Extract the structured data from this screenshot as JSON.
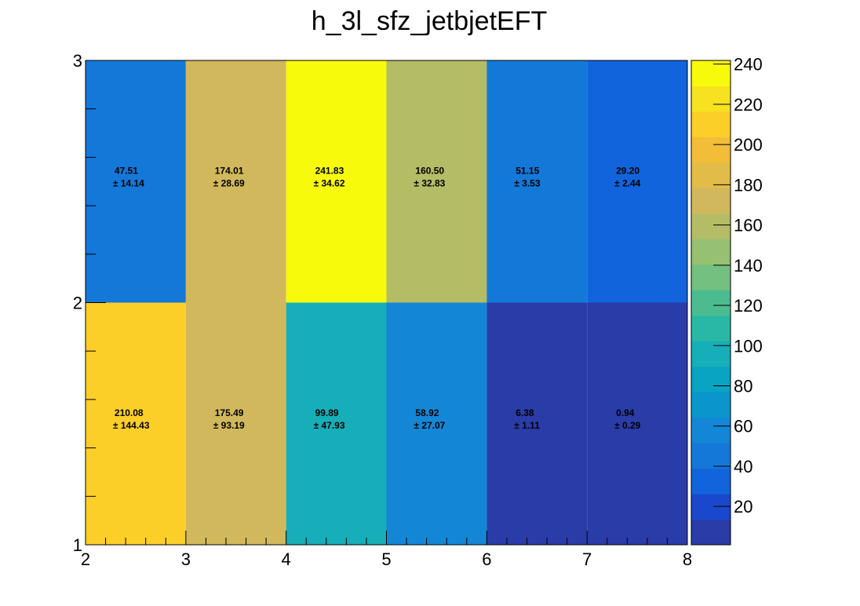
{
  "chart_data": {
    "type": "heatmap",
    "title": "h_3l_sfz_jetbjetEFT",
    "xlabel": "",
    "ylabel": "",
    "x_edges": [
      2,
      3,
      4,
      5,
      6,
      7,
      8
    ],
    "y_edges": [
      1,
      2,
      3
    ],
    "xlim": [
      2,
      8
    ],
    "ylim": [
      1,
      3
    ],
    "x_ticks": [
      "2",
      "3",
      "4",
      "5",
      "6",
      "7",
      "8"
    ],
    "y_ticks": [
      "1",
      "2",
      "3"
    ],
    "cells": [
      {
        "x": [
          2,
          3
        ],
        "y": [
          1,
          2
        ],
        "value": 210.08,
        "error": 144.43,
        "value_label": "210.08",
        "error_label": "± 144.43"
      },
      {
        "x": [
          3,
          4
        ],
        "y": [
          1,
          2
        ],
        "value": 175.49,
        "error": 93.19,
        "value_label": "175.49",
        "error_label": "± 93.19"
      },
      {
        "x": [
          4,
          5
        ],
        "y": [
          1,
          2
        ],
        "value": 99.89,
        "error": 47.93,
        "value_label": "99.89",
        "error_label": "± 47.93"
      },
      {
        "x": [
          5,
          6
        ],
        "y": [
          1,
          2
        ],
        "value": 58.92,
        "error": 27.07,
        "value_label": "58.92",
        "error_label": "± 27.07"
      },
      {
        "x": [
          6,
          7
        ],
        "y": [
          1,
          2
        ],
        "value": 6.38,
        "error": 1.11,
        "value_label": "6.38",
        "error_label": "± 1.11"
      },
      {
        "x": [
          7,
          8
        ],
        "y": [
          1,
          2
        ],
        "value": 0.94,
        "error": 0.29,
        "value_label": "0.94",
        "error_label": "± 0.29"
      },
      {
        "x": [
          2,
          3
        ],
        "y": [
          2,
          3
        ],
        "value": 47.51,
        "error": 14.14,
        "value_label": "47.51",
        "error_label": "± 14.14"
      },
      {
        "x": [
          3,
          4
        ],
        "y": [
          2,
          3
        ],
        "value": 174.01,
        "error": 28.69,
        "value_label": "174.01",
        "error_label": "± 28.69"
      },
      {
        "x": [
          4,
          5
        ],
        "y": [
          2,
          3
        ],
        "value": 241.83,
        "error": 34.62,
        "value_label": "241.83",
        "error_label": "± 34.62"
      },
      {
        "x": [
          5,
          6
        ],
        "y": [
          2,
          3
        ],
        "value": 160.5,
        "error": 32.83,
        "value_label": "160.50",
        "error_label": "± 32.83"
      },
      {
        "x": [
          6,
          7
        ],
        "y": [
          2,
          3
        ],
        "value": 51.15,
        "error": 3.53,
        "value_label": "51.15",
        "error_label": "± 3.53"
      },
      {
        "x": [
          7,
          8
        ],
        "y": [
          2,
          3
        ],
        "value": 29.2,
        "error": 2.44,
        "value_label": "29.20",
        "error_label": "± 2.44"
      }
    ],
    "color_scale": {
      "range": [
        0.94,
        241.83
      ],
      "ticks": [
        20,
        40,
        60,
        80,
        100,
        120,
        140,
        160,
        180,
        200,
        220,
        240
      ],
      "tick_labels": [
        "20",
        "40",
        "60",
        "80",
        "100",
        "120",
        "140",
        "160",
        "180",
        "200",
        "220",
        "240"
      ],
      "palette": [
        "#2a3ca8",
        "#1a48cc",
        "#1164dc",
        "#1478d8",
        "#1486d6",
        "#0a96cc",
        "#08a4c2",
        "#16aeb8",
        "#2ab8a6",
        "#4cbc90",
        "#74c080",
        "#96c072",
        "#b4bc66",
        "#d2b85c",
        "#e2bc48",
        "#f2be38",
        "#fcce28",
        "#f6e220",
        "#f8fa0c"
      ]
    },
    "grid": false,
    "legend": "right-colorbar"
  }
}
